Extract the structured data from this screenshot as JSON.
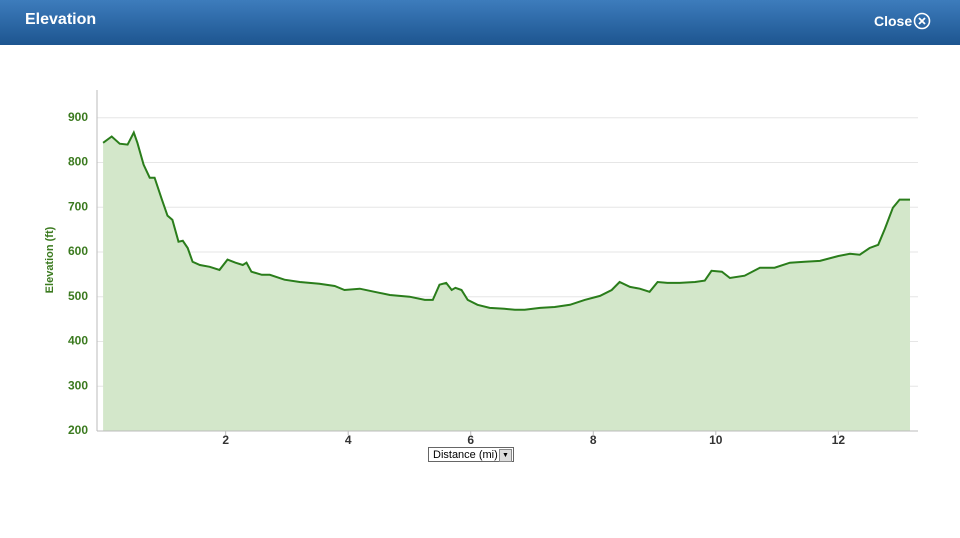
{
  "header": {
    "title": "Elevation",
    "close": "Close"
  },
  "controls": {
    "x_select": "Distance (mi)"
  },
  "chart_data": {
    "type": "area",
    "ylabel": "Elevation (ft)",
    "color": "#2a7d1b",
    "fill": "#d3e7ca",
    "grid": true,
    "x": [
      0,
      0.14,
      0.27,
      0.4,
      0.5,
      0.56,
      0.66,
      0.76,
      0.84,
      0.96,
      1.05,
      1.13,
      1.23,
      1.3,
      1.38,
      1.46,
      1.58,
      1.74,
      1.9,
      2.03,
      2.16,
      2.28,
      2.34,
      2.42,
      2.59,
      2.72,
      2.96,
      3.21,
      3.53,
      3.78,
      3.94,
      4.19,
      4.43,
      4.68,
      5.0,
      5.25,
      5.38,
      5.49,
      5.6,
      5.69,
      5.75,
      5.85,
      5.95,
      6.11,
      6.31,
      6.55,
      6.72,
      6.88,
      7.13,
      7.37,
      7.62,
      7.86,
      8.11,
      8.3,
      8.43,
      8.6,
      8.76,
      8.92,
      9.05,
      9.21,
      9.41,
      9.66,
      9.82,
      9.93,
      10.1,
      10.23,
      10.47,
      10.72,
      10.96,
      11.21,
      11.45,
      11.7,
      12.0,
      12.19,
      12.35,
      12.51,
      12.65,
      12.76,
      12.89,
      13.0,
      13.17
    ],
    "values": [
      844,
      858,
      842,
      840,
      867,
      844,
      795,
      766,
      766,
      717,
      681,
      672,
      623,
      625,
      609,
      578,
      571,
      567,
      560,
      583,
      576,
      571,
      576,
      556,
      549,
      549,
      538,
      533,
      529,
      524,
      515,
      518,
      511,
      504,
      500,
      493,
      493,
      527,
      531,
      515,
      520,
      515,
      493,
      482,
      475,
      473,
      471,
      471,
      475,
      477,
      482,
      493,
      502,
      515,
      533,
      522,
      518,
      511,
      533,
      531,
      531,
      533,
      536,
      558,
      556,
      542,
      547,
      565,
      565,
      576,
      578,
      580,
      591,
      596,
      594,
      609,
      616,
      652,
      699,
      717,
      717
    ],
    "xlim": [
      -0.1,
      13.3
    ],
    "xticks": [
      2,
      4,
      6,
      8,
      10,
      12
    ],
    "ylim": [
      200,
      962
    ],
    "yticks": [
      200,
      300,
      400,
      500,
      600,
      700,
      800,
      900
    ]
  }
}
